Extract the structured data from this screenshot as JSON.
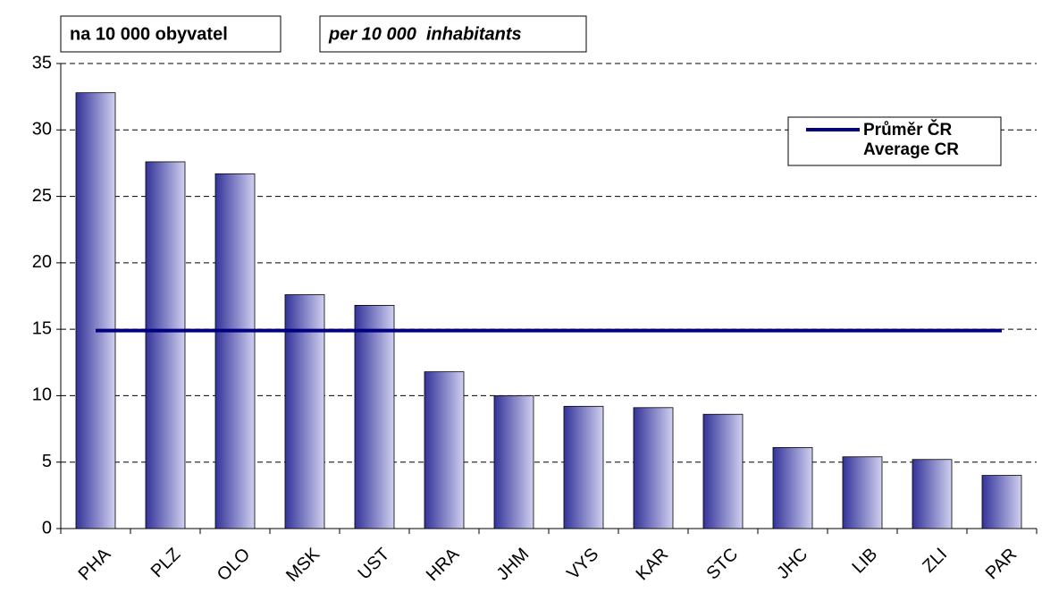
{
  "chart_data": {
    "type": "bar",
    "labels": [
      "na 10 000 obyvatel",
      "per 10 000  inhabitants"
    ],
    "categories": [
      "PHA",
      "PLZ",
      "OLO",
      "MSK",
      "UST",
      "HRA",
      "JHM",
      "VYS",
      "KAR",
      "STC",
      "JHC",
      "LIB",
      "ZLI",
      "PAR"
    ],
    "values": [
      32.8,
      27.6,
      26.7,
      17.6,
      16.8,
      11.8,
      10.0,
      9.2,
      9.1,
      8.6,
      6.1,
      5.4,
      5.2,
      4.0
    ],
    "color": "#333399",
    "average": {
      "legend": [
        "Průměr ČR",
        "Average CR"
      ],
      "value": 14.9,
      "color": "#000080"
    },
    "ylim": [
      0,
      35
    ],
    "yticks": [
      0,
      5,
      10,
      15,
      20,
      25,
      30,
      35
    ],
    "grid": true
  }
}
